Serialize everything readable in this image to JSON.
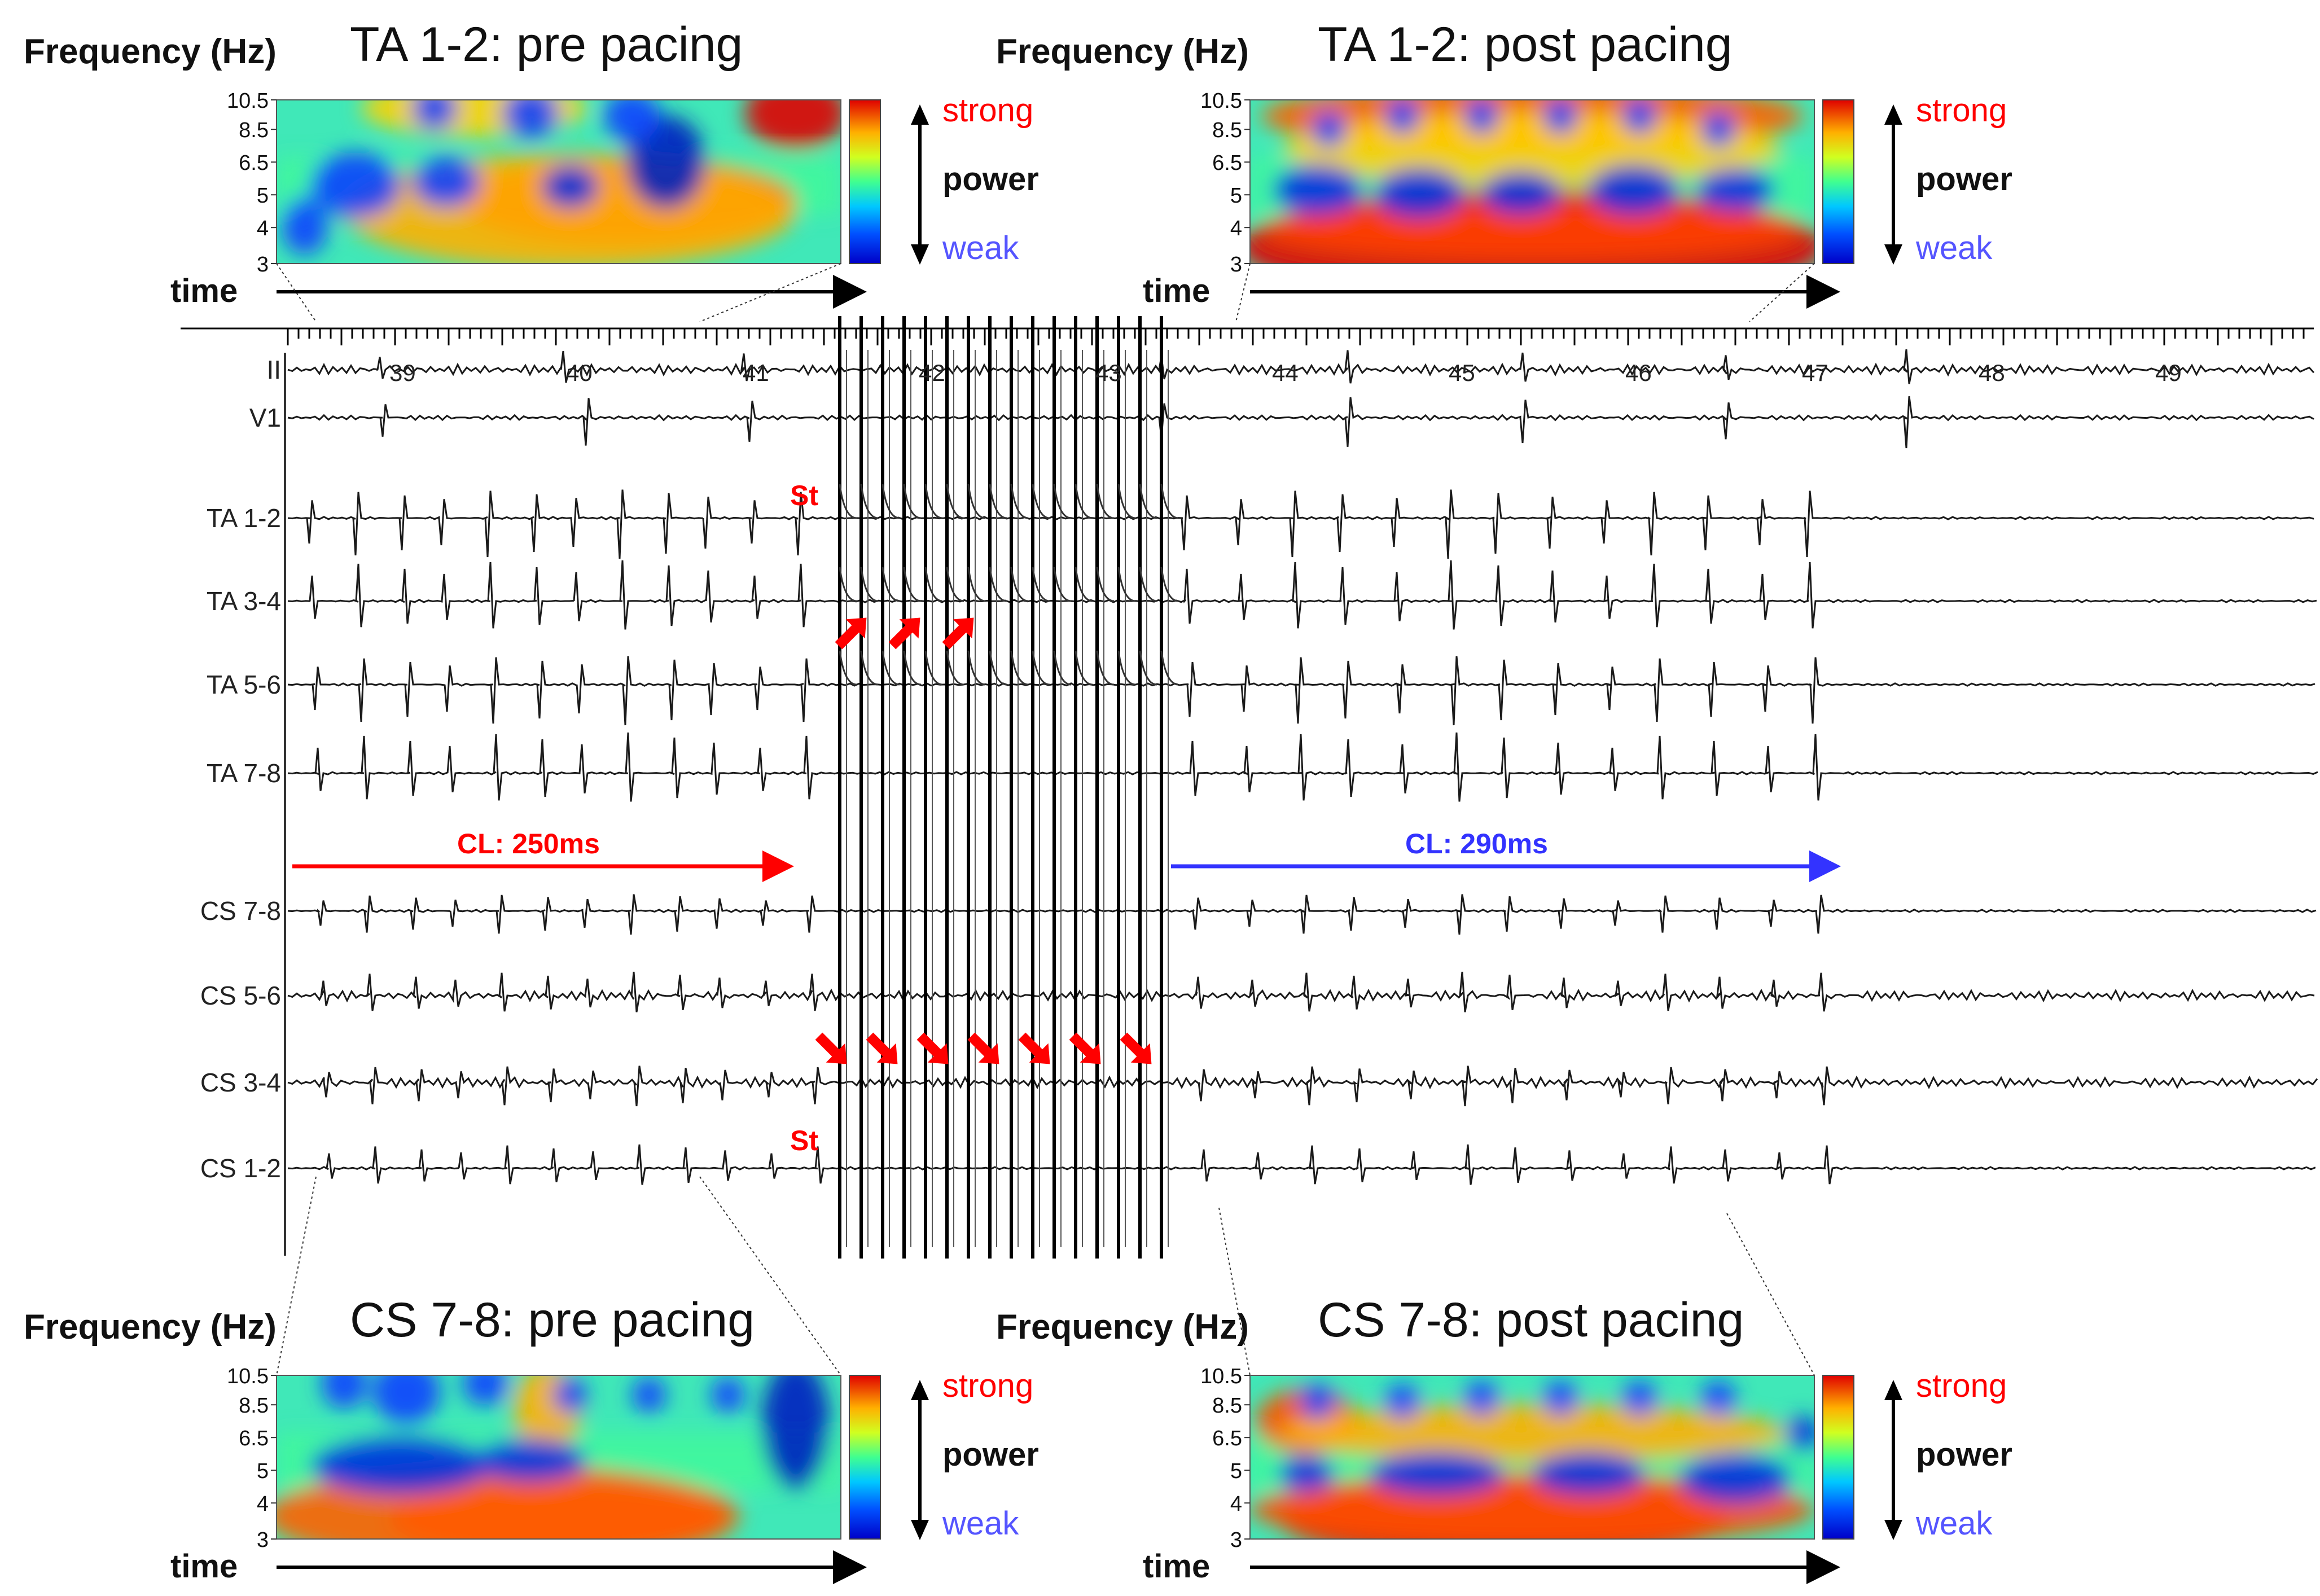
{
  "panels": [
    {
      "id": "ta-pre",
      "freq_label": "Frequency (Hz)",
      "title": "TA 1-2: pre pacing",
      "time_label": "time",
      "y_ticks": [
        "10.5",
        "8.5",
        "6.5",
        "5",
        "4",
        "3"
      ],
      "legend": {
        "strong": "strong",
        "power": "power",
        "weak": "weak"
      }
    },
    {
      "id": "ta-post",
      "freq_label": "Frequency (Hz)",
      "title": "TA 1-2: post pacing",
      "time_label": "time",
      "y_ticks": [
        "10.5",
        "8.5",
        "6.5",
        "5",
        "4",
        "3"
      ],
      "legend": {
        "strong": "strong",
        "power": "power",
        "weak": "weak"
      }
    },
    {
      "id": "cs-pre",
      "freq_label": "Frequency (Hz)",
      "title": "CS 7-8: pre pacing",
      "time_label": "time",
      "y_ticks": [
        "10.5",
        "8.5",
        "6.5",
        "5",
        "4",
        "3"
      ],
      "legend": {
        "strong": "strong",
        "power": "power",
        "weak": "weak"
      }
    },
    {
      "id": "cs-post",
      "freq_label": "Frequency (Hz)",
      "title": "CS 7-8: post pacing",
      "time_label": "time",
      "y_ticks": [
        "10.5",
        "8.5",
        "6.5",
        "5",
        "4",
        "3"
      ],
      "legend": {
        "strong": "strong",
        "power": "power",
        "weak": "weak"
      }
    }
  ],
  "ecg": {
    "channels": [
      "II",
      "V1",
      "TA 1-2",
      "TA 3-4",
      "TA 5-6",
      "TA 7-8",
      "CS 7-8",
      "CS 5-6",
      "CS 3-4",
      "CS 1-2"
    ],
    "seconds": [
      "39",
      "40",
      "41",
      "42",
      "43",
      "44",
      "45",
      "46",
      "47",
      "48",
      "49"
    ],
    "stim_label_top": "St",
    "stim_label_bottom": "St",
    "cl_pre": "CL: 250ms",
    "cl_post": "CL: 290ms"
  },
  "colors": {
    "strong": "#ff0000",
    "weak": "#5555ff",
    "cl_pre": "#ff0000",
    "cl_post": "#3333ff",
    "arrow": "#ff0000",
    "trace": "#1a1a1a"
  }
}
